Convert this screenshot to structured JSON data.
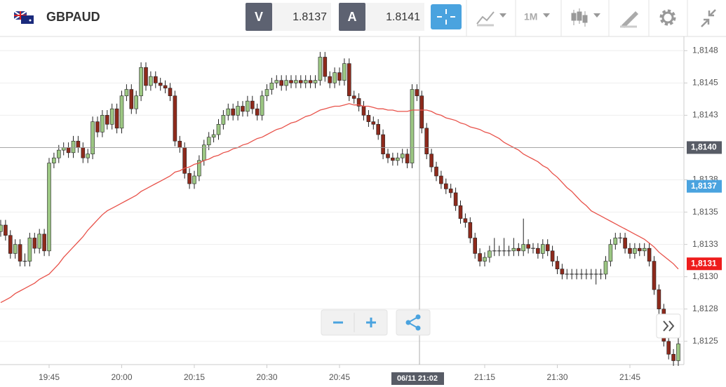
{
  "toolbar": {
    "symbol": "GBPAUD",
    "sell": {
      "label": "V",
      "price": "1.8137"
    },
    "buy": {
      "label": "A",
      "price": "1.8141"
    },
    "timeframe": "1M"
  },
  "chart_data": {
    "type": "candlestick",
    "categories": [
      null,
      null,
      null,
      null,
      null,
      null,
      null,
      null,
      null,
      null,
      "19:45",
      null,
      null,
      null,
      null,
      null,
      null,
      null,
      null,
      null,
      null,
      null,
      null,
      null,
      null,
      "20:00",
      null,
      null,
      null,
      null,
      null,
      null,
      null,
      null,
      null,
      null,
      null,
      null,
      null,
      null,
      "20:15",
      null,
      null,
      null,
      null,
      null,
      null,
      null,
      null,
      null,
      null,
      null,
      null,
      null,
      null,
      "20:30",
      null,
      null,
      null,
      null,
      null,
      null,
      null,
      null,
      null,
      null,
      null,
      null,
      null,
      null,
      "20:45",
      null,
      null,
      null,
      null,
      null,
      null,
      null,
      null,
      null,
      null,
      null,
      null,
      null,
      null,
      null,
      null,
      null,
      null,
      null,
      null,
      null,
      null,
      null,
      null,
      null,
      null,
      null,
      null,
      null,
      "21:15",
      null,
      null,
      null,
      null,
      null,
      null,
      null,
      null,
      null,
      null,
      null,
      null,
      null,
      null,
      "21:30",
      null,
      null,
      null,
      null,
      null,
      null,
      null,
      null,
      null,
      null,
      null,
      null,
      null,
      null,
      "21:45",
      null,
      null,
      null,
      null,
      null,
      null,
      null,
      null,
      null,
      null
    ],
    "open": [
      1.81335,
      1.8134,
      1.81332,
      1.81318,
      1.81325,
      1.81312,
      1.81312,
      1.8133,
      1.81322,
      1.81333,
      1.8132,
      1.81388,
      1.81392,
      1.81398,
      1.814,
      1.81396,
      1.81405,
      1.814,
      1.81392,
      1.81395,
      1.8142,
      1.81412,
      1.81425,
      1.81418,
      1.8143,
      1.81415,
      1.8144,
      1.81445,
      1.8143,
      1.8144,
      1.81462,
      1.81448,
      1.81455,
      1.8145,
      1.81448,
      1.81446,
      1.8144,
      1.81405,
      1.814,
      1.8138,
      1.81372,
      1.81378,
      1.8139,
      1.81402,
      1.81408,
      1.8141,
      1.81418,
      1.81425,
      1.8143,
      1.81425,
      1.81432,
      1.81428,
      1.81436,
      1.8143,
      1.81425,
      1.8144,
      1.81445,
      1.8145,
      1.81452,
      1.81448,
      1.81452,
      1.8145,
      1.81452,
      1.8145,
      1.81452,
      1.8145,
      1.81452,
      1.8147,
      1.81455,
      1.8145,
      1.81458,
      1.81452,
      1.81465,
      1.8144,
      1.81438,
      1.81432,
      1.81425,
      1.8142,
      1.81418,
      1.8141,
      1.81395,
      1.81392,
      1.8139,
      1.81392,
      1.81395,
      1.81388,
      1.81445,
      1.8144,
      1.81415,
      1.81395,
      1.81385,
      1.81378,
      1.81372,
      1.81368,
      1.81365,
      1.81355,
      1.81345,
      1.81342,
      1.8133,
      1.81318,
      1.81312,
      1.81315,
      1.8132,
      1.8132,
      1.8132,
      1.8132,
      1.8132,
      1.81322,
      1.8132,
      1.81325,
      1.81322,
      1.81322,
      1.81318,
      1.81325,
      1.8132,
      1.81312,
      1.81306,
      1.81302,
      1.81302,
      1.81302,
      1.81302,
      1.81302,
      1.81302,
      1.81302,
      1.81302,
      1.81302,
      1.81312,
      1.81325,
      1.8133,
      1.8133,
      1.81322,
      1.81318,
      1.81322,
      1.8132,
      1.81322,
      1.81312,
      1.8129,
      1.81275,
      1.8125,
      1.8124,
      1.81235
    ],
    "high": [
      1.81344,
      1.81344,
      1.81336,
      1.81329,
      1.81329,
      1.81318,
      1.81334,
      1.81334,
      1.81337,
      1.81337,
      1.81392,
      1.81396,
      1.81402,
      1.81404,
      1.81404,
      1.81409,
      1.81409,
      1.81404,
      1.81399,
      1.81424,
      1.81424,
      1.81429,
      1.81429,
      1.81434,
      1.81434,
      1.81444,
      1.81449,
      1.81449,
      1.81444,
      1.81466,
      1.81466,
      1.81459,
      1.81459,
      1.81454,
      1.81452,
      1.8145,
      1.81444,
      1.81409,
      1.81404,
      1.81384,
      1.81382,
      1.81394,
      1.81406,
      1.81412,
      1.81414,
      1.81422,
      1.81429,
      1.81434,
      1.81434,
      1.81436,
      1.81436,
      1.8144,
      1.8144,
      1.81434,
      1.81444,
      1.81449,
      1.81454,
      1.81456,
      1.81456,
      1.81456,
      1.81456,
      1.81456,
      1.81456,
      1.81456,
      1.81456,
      1.81456,
      1.81474,
      1.81474,
      1.81459,
      1.81462,
      1.81462,
      1.81469,
      1.81469,
      1.81444,
      1.81442,
      1.81436,
      1.81429,
      1.81424,
      1.81422,
      1.81414,
      1.81399,
      1.81396,
      1.81396,
      1.81399,
      1.81399,
      1.81449,
      1.81449,
      1.81444,
      1.81419,
      1.81399,
      1.81389,
      1.81382,
      1.81376,
      1.81372,
      1.81369,
      1.81359,
      1.81349,
      1.81346,
      1.81334,
      1.81322,
      1.81319,
      1.81324,
      1.8133,
      1.81324,
      1.8133,
      1.81324,
      1.8133,
      1.81326,
      1.81345,
      1.81329,
      1.81326,
      1.81326,
      1.81329,
      1.81329,
      1.81324,
      1.81316,
      1.8131,
      1.81306,
      1.81306,
      1.81306,
      1.81306,
      1.81306,
      1.81306,
      1.81306,
      1.81306,
      1.81316,
      1.81329,
      1.81334,
      1.81334,
      1.81334,
      1.81326,
      1.81326,
      1.81326,
      1.81326,
      1.81326,
      1.81316,
      1.81294,
      1.81279,
      1.81254,
      1.81244,
      1.81256
    ],
    "low": [
      1.81331,
      1.81328,
      1.81314,
      1.81314,
      1.81308,
      1.81308,
      1.81308,
      1.81318,
      1.81318,
      1.81316,
      1.81316,
      1.81384,
      1.81388,
      1.81394,
      1.81392,
      1.81392,
      1.81396,
      1.81388,
      1.81388,
      1.81391,
      1.81408,
      1.81408,
      1.81414,
      1.81414,
      1.81411,
      1.81411,
      1.81436,
      1.81426,
      1.81426,
      1.81436,
      1.81444,
      1.81444,
      1.81446,
      1.81444,
      1.81442,
      1.81436,
      1.81401,
      1.81396,
      1.81376,
      1.81368,
      1.81368,
      1.81374,
      1.81386,
      1.81398,
      1.81404,
      1.81406,
      1.81414,
      1.81421,
      1.81421,
      1.81421,
      1.81424,
      1.81424,
      1.81426,
      1.81421,
      1.81421,
      1.81436,
      1.81441,
      1.81446,
      1.81444,
      1.81444,
      1.81446,
      1.81446,
      1.81446,
      1.81446,
      1.81446,
      1.81446,
      1.81448,
      1.81451,
      1.81446,
      1.81446,
      1.81448,
      1.81448,
      1.81436,
      1.81434,
      1.81428,
      1.81421,
      1.81416,
      1.81414,
      1.81406,
      1.81391,
      1.81388,
      1.81386,
      1.81386,
      1.81388,
      1.81384,
      1.81384,
      1.81436,
      1.81411,
      1.81391,
      1.81381,
      1.81374,
      1.81368,
      1.81364,
      1.81361,
      1.81351,
      1.81341,
      1.81338,
      1.81326,
      1.81314,
      1.81308,
      1.81308,
      1.81311,
      1.81316,
      1.81316,
      1.81316,
      1.81316,
      1.81316,
      1.81316,
      1.81316,
      1.81318,
      1.81318,
      1.81314,
      1.81314,
      1.81316,
      1.81308,
      1.81302,
      1.81298,
      1.81298,
      1.81298,
      1.81298,
      1.81298,
      1.81298,
      1.81298,
      1.81294,
      1.81298,
      1.81298,
      1.81308,
      1.81321,
      1.81326,
      1.81318,
      1.81314,
      1.81314,
      1.81316,
      1.81316,
      1.81308,
      1.81286,
      1.81271,
      1.81246,
      1.81236,
      1.81231,
      1.81231
    ],
    "close": [
      1.8134,
      1.81332,
      1.81318,
      1.81325,
      1.81312,
      1.81312,
      1.8133,
      1.81322,
      1.81333,
      1.8132,
      1.81388,
      1.81392,
      1.81398,
      1.814,
      1.81396,
      1.81405,
      1.814,
      1.81392,
      1.81395,
      1.8142,
      1.81412,
      1.81425,
      1.81418,
      1.8143,
      1.81415,
      1.8144,
      1.81445,
      1.8143,
      1.8144,
      1.81462,
      1.81448,
      1.81455,
      1.8145,
      1.81448,
      1.81446,
      1.8144,
      1.81405,
      1.814,
      1.8138,
      1.81372,
      1.81378,
      1.8139,
      1.81402,
      1.81408,
      1.8141,
      1.81418,
      1.81425,
      1.8143,
      1.81425,
      1.81432,
      1.81428,
      1.81436,
      1.8143,
      1.81425,
      1.8144,
      1.81445,
      1.8145,
      1.81452,
      1.81448,
      1.81452,
      1.8145,
      1.81452,
      1.8145,
      1.81452,
      1.8145,
      1.81452,
      1.8147,
      1.81455,
      1.8145,
      1.81458,
      1.81452,
      1.81465,
      1.8144,
      1.81438,
      1.81432,
      1.81425,
      1.8142,
      1.81418,
      1.8141,
      1.81395,
      1.81392,
      1.8139,
      1.81392,
      1.81395,
      1.81388,
      1.81445,
      1.8144,
      1.81415,
      1.81395,
      1.81385,
      1.81378,
      1.81372,
      1.81368,
      1.81365,
      1.81355,
      1.81345,
      1.81342,
      1.8133,
      1.81318,
      1.81312,
      1.81315,
      1.8132,
      1.8132,
      1.8132,
      1.8132,
      1.8132,
      1.81322,
      1.8132,
      1.81325,
      1.81322,
      1.81322,
      1.81318,
      1.81325,
      1.8132,
      1.81312,
      1.81306,
      1.81302,
      1.81302,
      1.81302,
      1.81302,
      1.81302,
      1.81302,
      1.81302,
      1.81302,
      1.81302,
      1.81312,
      1.81325,
      1.8133,
      1.8133,
      1.81322,
      1.81318,
      1.81322,
      1.8132,
      1.81322,
      1.81312,
      1.8129,
      1.81275,
      1.8125,
      1.8124,
      1.81235,
      1.81248
    ],
    "up_color": "#9cc783",
    "down_color": "#8e2a1c",
    "ma": {
      "color": "#e8524a",
      "values": [
        1.8128,
        1.81282,
        1.81284,
        1.81287,
        1.81289,
        1.81291,
        1.81293,
        1.81295,
        1.81298,
        1.813,
        1.81302,
        1.81306,
        1.8131,
        1.81315,
        1.81319,
        1.81323,
        1.81327,
        1.81331,
        1.81336,
        1.8134,
        1.81344,
        1.81348,
        1.81351,
        1.81353,
        1.81355,
        1.81357,
        1.81359,
        1.81361,
        1.81363,
        1.81366,
        1.81368,
        1.8137,
        1.81372,
        1.81374,
        1.81376,
        1.81378,
        1.81381,
        1.81382,
        1.81384,
        1.81385,
        1.81387,
        1.81388,
        1.8139,
        1.81391,
        1.81393,
        1.81394,
        1.81396,
        1.81397,
        1.81399,
        1.814,
        1.81402,
        1.81403,
        1.81405,
        1.81407,
        1.81408,
        1.8141,
        1.81412,
        1.81414,
        1.81415,
        1.81417,
        1.81419,
        1.8142,
        1.81422,
        1.81424,
        1.81425,
        1.81427,
        1.81429,
        1.8143,
        1.81431,
        1.81432,
        1.81432,
        1.81433,
        1.81434,
        1.81433,
        1.81433,
        1.81432,
        1.81432,
        1.81431,
        1.8143,
        1.8143,
        1.81429,
        1.81429,
        1.81428,
        1.81428,
        1.81428,
        1.81429,
        1.81429,
        1.81429,
        1.81429,
        1.81428,
        1.81426,
        1.81425,
        1.81423,
        1.81422,
        1.81421,
        1.81419,
        1.81418,
        1.81416,
        1.81415,
        1.81414,
        1.81412,
        1.81411,
        1.81409,
        1.81407,
        1.81404,
        1.81402,
        1.814,
        1.81398,
        1.81395,
        1.81393,
        1.81391,
        1.81389,
        1.81386,
        1.81384,
        1.8138,
        1.81377,
        1.81373,
        1.81369,
        1.81366,
        1.81362,
        1.81358,
        1.81355,
        1.81351,
        1.81349,
        1.81347,
        1.81345,
        1.81343,
        1.81341,
        1.81339,
        1.81337,
        1.81335,
        1.81333,
        1.81331,
        1.81329,
        1.81326,
        1.81323,
        1.81319,
        1.81316,
        1.81313,
        1.8131,
        1.81306
      ]
    },
    "ylim": [
      1.81232,
      1.81486
    ],
    "yticks": [
      {
        "value": 1.81475,
        "label": "1,8148"
      },
      {
        "value": 1.8145,
        "label": "1,8145"
      },
      {
        "value": 1.81425,
        "label": "1,8143"
      },
      {
        "value": 1.81375,
        "label": "1,8138"
      },
      {
        "value": 1.8135,
        "label": "1,8135"
      },
      {
        "value": 1.81325,
        "label": "1,8133"
      },
      {
        "value": 1.813,
        "label": "1,8130"
      },
      {
        "value": 1.81275,
        "label": "1,8128"
      },
      {
        "value": 1.8125,
        "label": "1,8125"
      }
    ],
    "grid": true,
    "crosshair": {
      "x_label": "06/11 21:02",
      "price": {
        "value": 1.814,
        "label": "1,8140"
      }
    },
    "markers": [
      {
        "value": 1.8137,
        "label": "1,8137",
        "color": "#4aa3df"
      },
      {
        "value": 1.8131,
        "label": "1,8131",
        "color": "#ee1c1c"
      }
    ]
  }
}
